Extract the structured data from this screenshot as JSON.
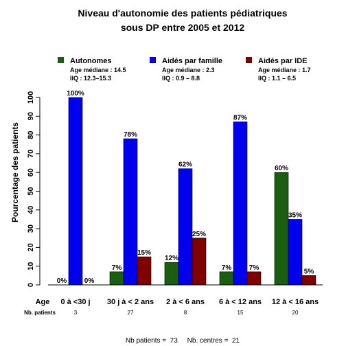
{
  "chart_data": {
    "type": "bar",
    "title": [
      "Niveau d'autonomie des patients pédiatriques",
      "sous DP entre 2005 et 2012"
    ],
    "ylabel": "Pourcentage des patients",
    "ylim": [
      0,
      100
    ],
    "yticks": [
      0,
      10,
      20,
      30,
      40,
      50,
      60,
      70,
      80,
      90,
      100
    ],
    "x_row_label": "Age",
    "categories": [
      "0 à <30 j",
      "30 j à < 2 ans",
      "2 à < 6 ans",
      "6 à < 12 ans",
      "12 à < 16 ans"
    ],
    "series": [
      {
        "name": "Autonomes",
        "color": "#1a5e10",
        "values": [
          0,
          7,
          12,
          7,
          60
        ],
        "labels": [
          "0%",
          "7%",
          "12%",
          "7%",
          "60%"
        ],
        "stat1": "Age médiane : 14.5",
        "stat2": "IIQ : 12.3–15.3"
      },
      {
        "name": "Aidés par famille",
        "color": "#0000ee",
        "values": [
          100,
          78,
          62,
          87,
          35
        ],
        "labels": [
          "100%",
          "78%",
          "62%",
          "87%",
          "35%"
        ],
        "stat1": "Age médiane : 2.3",
        "stat2": "IIQ :  0.9 – 8.8"
      },
      {
        "name": "Aidés par IDE",
        "color": "#800000",
        "values": [
          0,
          15,
          25,
          7,
          5
        ],
        "labels": [
          "0%",
          "15%",
          "25%",
          "7%",
          "5%"
        ],
        "stat1": "Age médiane : 1.7",
        "stat2": "IIQ :  1.1 – 6.5"
      }
    ],
    "nb_patients_label": "Nb. patients",
    "nb_patients": [
      "3",
      "27",
      "8",
      "15",
      "20"
    ],
    "legend_position": "top",
    "grid": false
  },
  "footer": "Nb patients =  73     Nb. centres =  21"
}
